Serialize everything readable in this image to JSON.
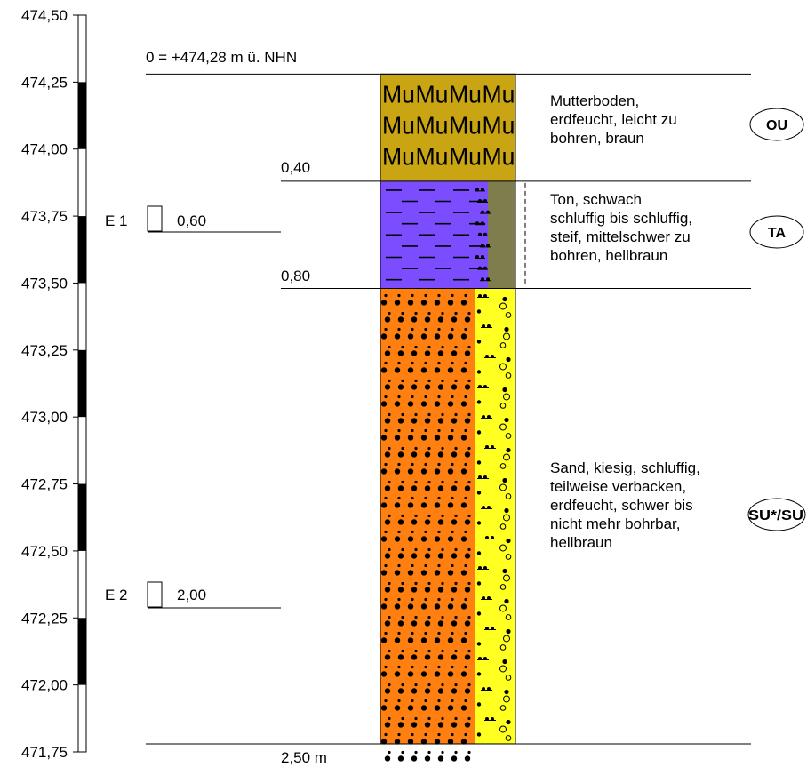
{
  "header": {
    "reference": "0 = +474,28 m ü. NHN"
  },
  "scale": {
    "ticks": [
      "474,50",
      "474,25",
      "474,00",
      "473,75",
      "473,50",
      "473,25",
      "473,00",
      "472,75",
      "472,50",
      "472,25",
      "472,00",
      "471,75"
    ],
    "top_value": 474.5,
    "bottom_value": 471.75,
    "segment": 0.25
  },
  "ground_level": 474.28,
  "final_depth": 2.5,
  "final_depth_label": "2,50 m",
  "layers": [
    {
      "top": 0.0,
      "bottom": 0.4,
      "bottom_label": "",
      "pattern": "mutterboden",
      "main_color": "#C9A514",
      "side_color": "#C9A514",
      "symbol_text": "Mu",
      "description": [
        "Mutterboden,",
        "erdfeucht, leicht zu",
        "bohren, braun"
      ],
      "code": "OU"
    },
    {
      "top": 0.4,
      "bottom": 0.8,
      "bottom_label": "0,40",
      "pattern": "ton",
      "main_color": "#7B4DFF",
      "side_color": "#7D7D4E",
      "description": [
        "Ton, schwach",
        "schluffig bis schluffig,",
        "steif, mittelschwer zu",
        "bohren, hellbraun"
      ],
      "code": "TA"
    },
    {
      "top": 0.8,
      "bottom": 2.5,
      "bottom_label": "0,80",
      "pattern": "sand",
      "main_color": "#FF7F10",
      "side_color": "#FFFF22",
      "description": [
        "Sand, kiesig, schluffig,",
        "teilweise verbacken,",
        "erdfeucht, schwer bis",
        "nicht mehr bohrbar,",
        "hellbraun"
      ],
      "code": "SU*/SU"
    }
  ],
  "samples": [
    {
      "name": "E 1",
      "depth": 0.6,
      "depth_label": "0,60"
    },
    {
      "name": "E 2",
      "depth": 2.0,
      "depth_label": "2,00"
    }
  ]
}
